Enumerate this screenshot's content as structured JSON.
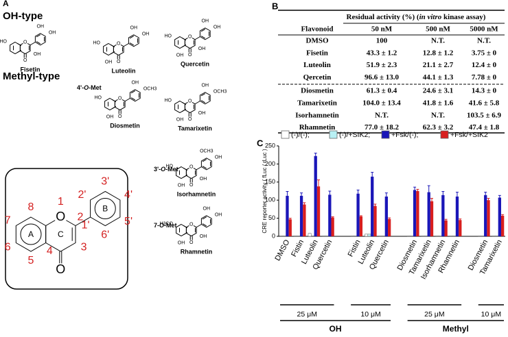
{
  "panel_a": {
    "label": "A",
    "oh_header": "OH-type",
    "methyl_header": "Methyl-type",
    "group_labels": [
      [
        "4'-",
        "O",
        "-Met"
      ],
      [
        "3'-",
        "O",
        "-Met"
      ],
      [
        "7-",
        "O",
        "-Met"
      ]
    ],
    "molecules": [
      {
        "name": "Fisetin",
        "substituents": {
          "1": "O",
          "4": "O",
          "7": "HO",
          "3": "OH",
          "3'": "OH",
          "4'": "OH"
        }
      },
      {
        "name": "Luteolin",
        "substituents": {
          "1": "O",
          "4": "O",
          "7": "HO",
          "5": "OH",
          "3'": "OH",
          "4'": "OH"
        }
      },
      {
        "name": "Quercetin",
        "substituents": {
          "1": "O",
          "4": "O",
          "7": "HO",
          "5": "OH",
          "3": "OH",
          "3'": "OH",
          "4'": "OH"
        }
      },
      {
        "name": "Diosmetin",
        "substituents": {
          "1": "O",
          "4": "O",
          "7": "HO",
          "5": "OH",
          "3'": "OH",
          "4'": "OCH3"
        }
      },
      {
        "name": "Tamarixetin",
        "substituents": {
          "1": "O",
          "4": "O",
          "7": "HO",
          "5": "OH",
          "3": "OH",
          "3'": "OH",
          "4'": "OCH3"
        }
      },
      {
        "name": "Isorhamnetin",
        "substituents": {
          "1": "O",
          "4": "O",
          "7": "HO",
          "5": "OH",
          "3": "OH",
          "3'": "OCH3",
          "4'": "OH"
        }
      },
      {
        "name": "Rhamnetin",
        "substituents": {
          "1": "O",
          "4": "O",
          "7": "H3CO",
          "5": "OH",
          "3": "OH",
          "3'": "OH",
          "4'": "OH"
        }
      }
    ],
    "scaffold": {
      "substituents": {
        "1": "O",
        "4": "O"
      },
      "ring_labels": {
        "A": "A",
        "C": "C",
        "B": "B"
      },
      "site_numbers": {
        "1": "1",
        "2": "2",
        "3": "3",
        "4": "4",
        "5": "5",
        "6": "6",
        "7": "7",
        "8": "8",
        "1'": "1'",
        "2'": "2'",
        "3'": "3'",
        "4'": "4'",
        "5'": "5'",
        "6'": "6'"
      }
    }
  },
  "panel_b": {
    "label": "B",
    "header_parts": [
      "Residual activity (%) (",
      "in vitro",
      " kinase assay)"
    ],
    "columns": [
      "Flavonoid",
      "50 nM",
      "500 nM",
      "5000 nM"
    ],
    "rows": [
      [
        "DMSO",
        "100",
        "N.T.",
        "N.T."
      ],
      [
        "Fisetin",
        "43.3 ± 1.2",
        "12.8 ± 1.2",
        "3.75 ± 0"
      ],
      [
        "Luteolin",
        "51.9 ± 2.3",
        "21.1 ± 2.7",
        "12.4 ± 0"
      ],
      [
        "Qercetin",
        "96.6 ± 13.0",
        "44.1 ± 1.3",
        "7.78 ± 0"
      ],
      [
        "Diosmetin",
        "61.3 ± 0.4",
        "24.6 ± 3.1",
        "14.3 ± 0"
      ],
      [
        "Tamarixetin",
        "104.0 ± 13.4",
        "41.8 ± 1.6",
        "41.6 ± 5.8"
      ],
      [
        "Isorhamnetin",
        "N.T.",
        "N.T.",
        "103.5 ± 6.9"
      ],
      [
        "Rhamnetin",
        "77.0 ± 18.2",
        "62.3 ± 3.2",
        "47.4 ± 1.8"
      ]
    ]
  },
  "chart_data": {
    "type": "bar",
    "panel_label": "C",
    "y_label": "CRE reporter activity ( fLuc / rLuc )",
    "categories": [
      "DMSO",
      "Fistin",
      "Luteolin",
      "Quercetin",
      null,
      "Fistin",
      "Luteolin",
      "Quercetin",
      null,
      "Diosmetin",
      "Tamarixetin",
      "Isorhamnetin",
      "Rhamnetin",
      null,
      "Diosmetin",
      "Tamarixetin"
    ],
    "series": [
      {
        "name": "(-)/(-);",
        "color": "#ffffff",
        "values": [
          1,
          1,
          8,
          1,
          null,
          1,
          6,
          1,
          null,
          1,
          1,
          1,
          1,
          null,
          1,
          1
        ]
      },
      {
        "name": "(-)/+SIK2;",
        "color": "#b8f0f4",
        "values": [
          1,
          1,
          1,
          1,
          null,
          1,
          6,
          1,
          null,
          1,
          1,
          1,
          1,
          null,
          1,
          1
        ]
      },
      {
        "name": "+Fsk/(-);",
        "color": "#1a16b8",
        "values": [
          112,
          112,
          222,
          115,
          null,
          118,
          165,
          110,
          null,
          128,
          122,
          114,
          110,
          null,
          114,
          107
        ],
        "errors": [
          12,
          8,
          8,
          10,
          null,
          10,
          12,
          10,
          null,
          8,
          18,
          10,
          12,
          null,
          8,
          6
        ]
      },
      {
        "name": "+Fsk/+SIK2",
        "color": "#d81e1e",
        "values": [
          47,
          88,
          138,
          52,
          null,
          55,
          84,
          48,
          null,
          125,
          97,
          44,
          45,
          null,
          100,
          57
        ],
        "errors": [
          3,
          5,
          18,
          2,
          null,
          2,
          5,
          3,
          null,
          5,
          8,
          3,
          3,
          null,
          5,
          3
        ]
      }
    ],
    "ylim": [
      0,
      250
    ],
    "yticks": [
      0,
      50,
      100,
      150,
      200,
      250
    ],
    "dose_labels": [
      "25 μM",
      "10 μM",
      "25 μM",
      "10 μM"
    ],
    "class_labels": [
      "OH",
      "Methyl"
    ]
  }
}
